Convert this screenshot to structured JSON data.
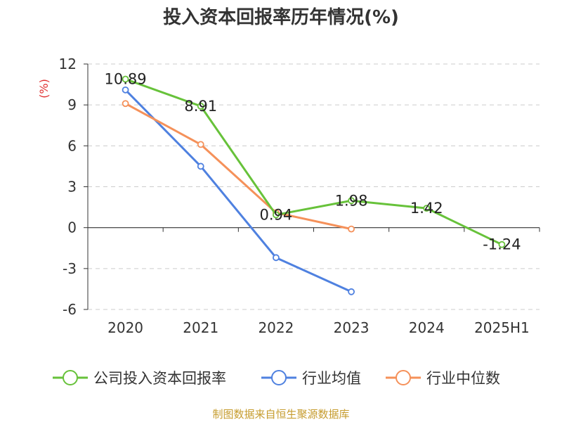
{
  "title": "投入资本回报率历年情况(%)",
  "source_note": "制图数据来自恒生聚源数据库",
  "y_unit": "(%)",
  "colors": {
    "company": "#67c23a",
    "industry_avg": "#4f81e0",
    "industry_median": "#f5915a",
    "unit": "#e03030",
    "source": "#c69c2e"
  },
  "chart_data": {
    "type": "line",
    "title": "投入资本回报率历年情况(%)",
    "ylabel": "(%)",
    "categories": [
      "2020",
      "2021",
      "2022",
      "2023",
      "2024",
      "2025H1"
    ],
    "ylim": [
      -6,
      12
    ],
    "yticks": [
      -6,
      -3,
      0,
      3,
      6,
      9,
      12
    ],
    "grid": true,
    "legend": "bottom",
    "series": [
      {
        "name": "公司投入资本回报率",
        "color": "#67c23a",
        "values": [
          10.89,
          8.91,
          0.94,
          1.98,
          1.42,
          -1.24
        ],
        "labels": [
          "10.89",
          "8.91",
          "0.94",
          "1.98",
          "1.42",
          "-1.24"
        ]
      },
      {
        "name": "行业均值",
        "color": "#4f81e0",
        "values": [
          10.1,
          4.5,
          -2.2,
          -4.7,
          null,
          null
        ]
      },
      {
        "name": "行业中位数",
        "color": "#f5915a",
        "values": [
          9.1,
          6.1,
          1.1,
          -0.1,
          null,
          null
        ]
      }
    ]
  }
}
